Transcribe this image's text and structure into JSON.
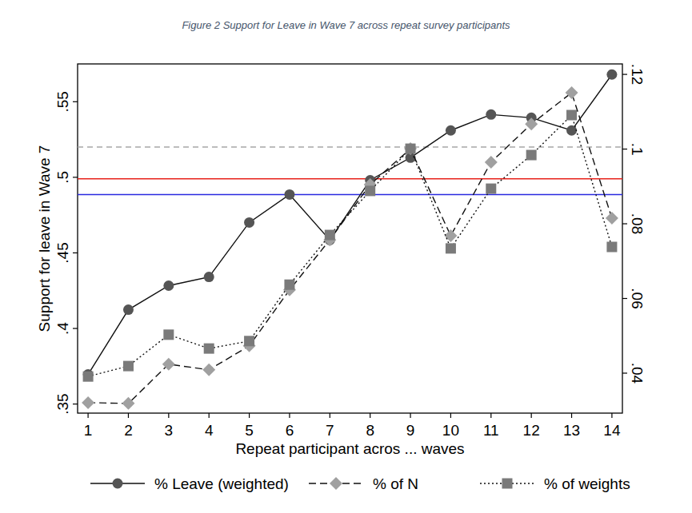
{
  "chart_data": {
    "type": "line",
    "title": "Figure 2 Support for Leave in Wave 7 across repeat survey participants",
    "x_label": "Repeat participant acros ... waves",
    "y_label": "Support for leave in Wave 7",
    "x": [
      1,
      2,
      3,
      4,
      5,
      6,
      7,
      8,
      9,
      10,
      11,
      12,
      13,
      14
    ],
    "xlim": [
      0.74,
      14.26
    ],
    "xticks": [
      1,
      2,
      3,
      4,
      5,
      6,
      7,
      8,
      9,
      10,
      11,
      12,
      13,
      14
    ],
    "ylim": [
      0.344,
      0.575
    ],
    "yticks": [
      {
        "value": 0.35,
        "label": ".35"
      },
      {
        "value": 0.4,
        "label": ".4"
      },
      {
        "value": 0.45,
        "label": ".45"
      },
      {
        "value": 0.5,
        "label": ".5"
      },
      {
        "value": 0.55,
        "label": ".55"
      }
    ],
    "y2lim": [
      0.0293,
      0.1228
    ],
    "y2ticks": [
      {
        "value": 0.04,
        "label": ".04"
      },
      {
        "value": 0.06,
        "label": ".06"
      },
      {
        "value": 0.08,
        "label": ".08"
      },
      {
        "value": 0.1,
        "label": ".1"
      },
      {
        "value": 0.12,
        "label": ".12"
      }
    ],
    "grid": false,
    "legend": "bottom",
    "reference_lines": [
      {
        "value": 0.52,
        "color": "#a6a6a6",
        "line_style": "dashed"
      },
      {
        "value": 0.499,
        "color": "#e8221b",
        "line_style": "solid"
      },
      {
        "value": 0.4886,
        "color": "#2a2ae0",
        "line_style": "solid"
      }
    ],
    "series": [
      {
        "name": "% Leave (weighted)",
        "color": "#555555",
        "marker": "circle",
        "line_style": "solid",
        "values": [
          0.3696,
          0.4124,
          0.4283,
          0.4341,
          0.4701,
          0.4886,
          0.4585,
          0.4981,
          0.513,
          0.531,
          0.5415,
          0.5394,
          0.531,
          0.568
        ]
      },
      {
        "name": "% of N",
        "color": "#a0a0a0",
        "marker": "diamond",
        "line_style": "dashed",
        "axis": "y2",
        "values": [
          0.0321,
          0.0319,
          0.0424,
          0.0409,
          0.0473,
          0.0623,
          0.0757,
          0.0905,
          0.1001,
          0.0768,
          0.0965,
          0.1067,
          0.1151,
          0.0815
        ]
      },
      {
        "name": "% of weights",
        "color": "#7a7a7a",
        "marker": "square",
        "line_style": "dotted",
        "axis": "y2",
        "values": [
          0.0391,
          0.0419,
          0.0503,
          0.0466,
          0.0486,
          0.0637,
          0.077,
          0.0888,
          0.1001,
          0.0734,
          0.0894,
          0.0984,
          0.1091,
          0.0738
        ]
      }
    ]
  }
}
